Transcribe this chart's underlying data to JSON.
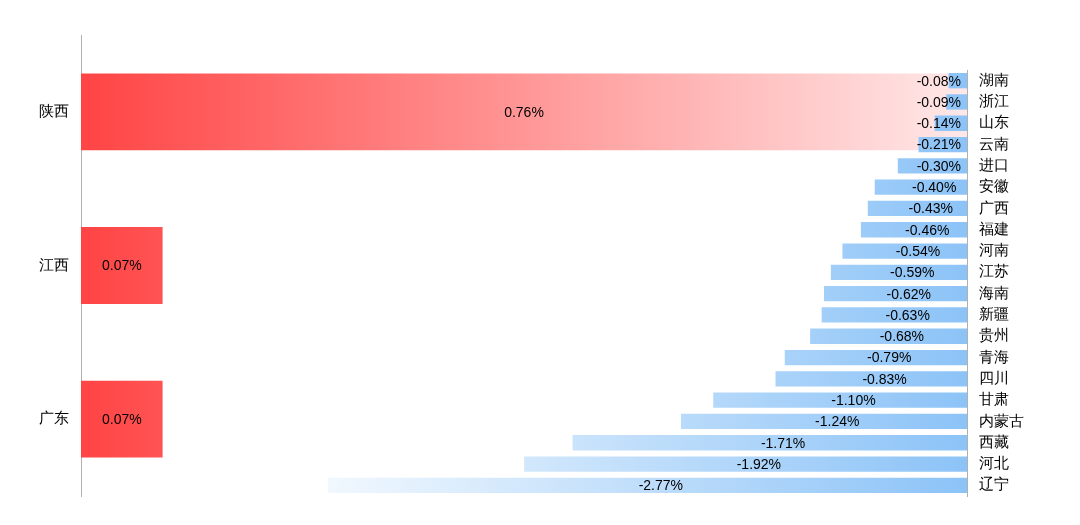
{
  "chart_data": [
    {
      "type": "bar",
      "orientation": "horizontal",
      "categories": [
        "陕西",
        "江西",
        "广东"
      ],
      "values": [
        0.76,
        0.07,
        0.07
      ],
      "value_labels": [
        "0.76%",
        "0.07%",
        "0.07%"
      ],
      "color": "#ff4444",
      "grid": false,
      "tick_labels": "y"
    },
    {
      "type": "bar",
      "orientation": "horizontal",
      "categories": [
        "湖南",
        "浙江",
        "山东",
        "云南",
        "进口",
        "安徽",
        "广西",
        "福建",
        "河南",
        "江苏",
        "海南",
        "新疆",
        "贵州",
        "青海",
        "四川",
        "甘肃",
        "内蒙古",
        "西藏",
        "河北",
        "辽宁"
      ],
      "values": [
        -0.08,
        -0.09,
        -0.14,
        -0.21,
        -0.3,
        -0.4,
        -0.43,
        -0.46,
        -0.54,
        -0.59,
        -0.62,
        -0.63,
        -0.68,
        -0.79,
        -0.83,
        -1.1,
        -1.24,
        -1.71,
        -1.92,
        -2.77
      ],
      "value_labels": [
        "-0.08%",
        "-0.09%",
        "-0.14%",
        "-0.21%",
        "-0.30%",
        "-0.40%",
        "-0.43%",
        "-0.46%",
        "-0.54%",
        "-0.59%",
        "-0.62%",
        "-0.63%",
        "-0.68%",
        "-0.79%",
        "-0.83%",
        "-1.10%",
        "-1.24%",
        "-1.71%",
        "-1.92%",
        "-2.77%"
      ],
      "color": "#8cc3f7",
      "grid": false,
      "tick_labels": "y"
    }
  ]
}
